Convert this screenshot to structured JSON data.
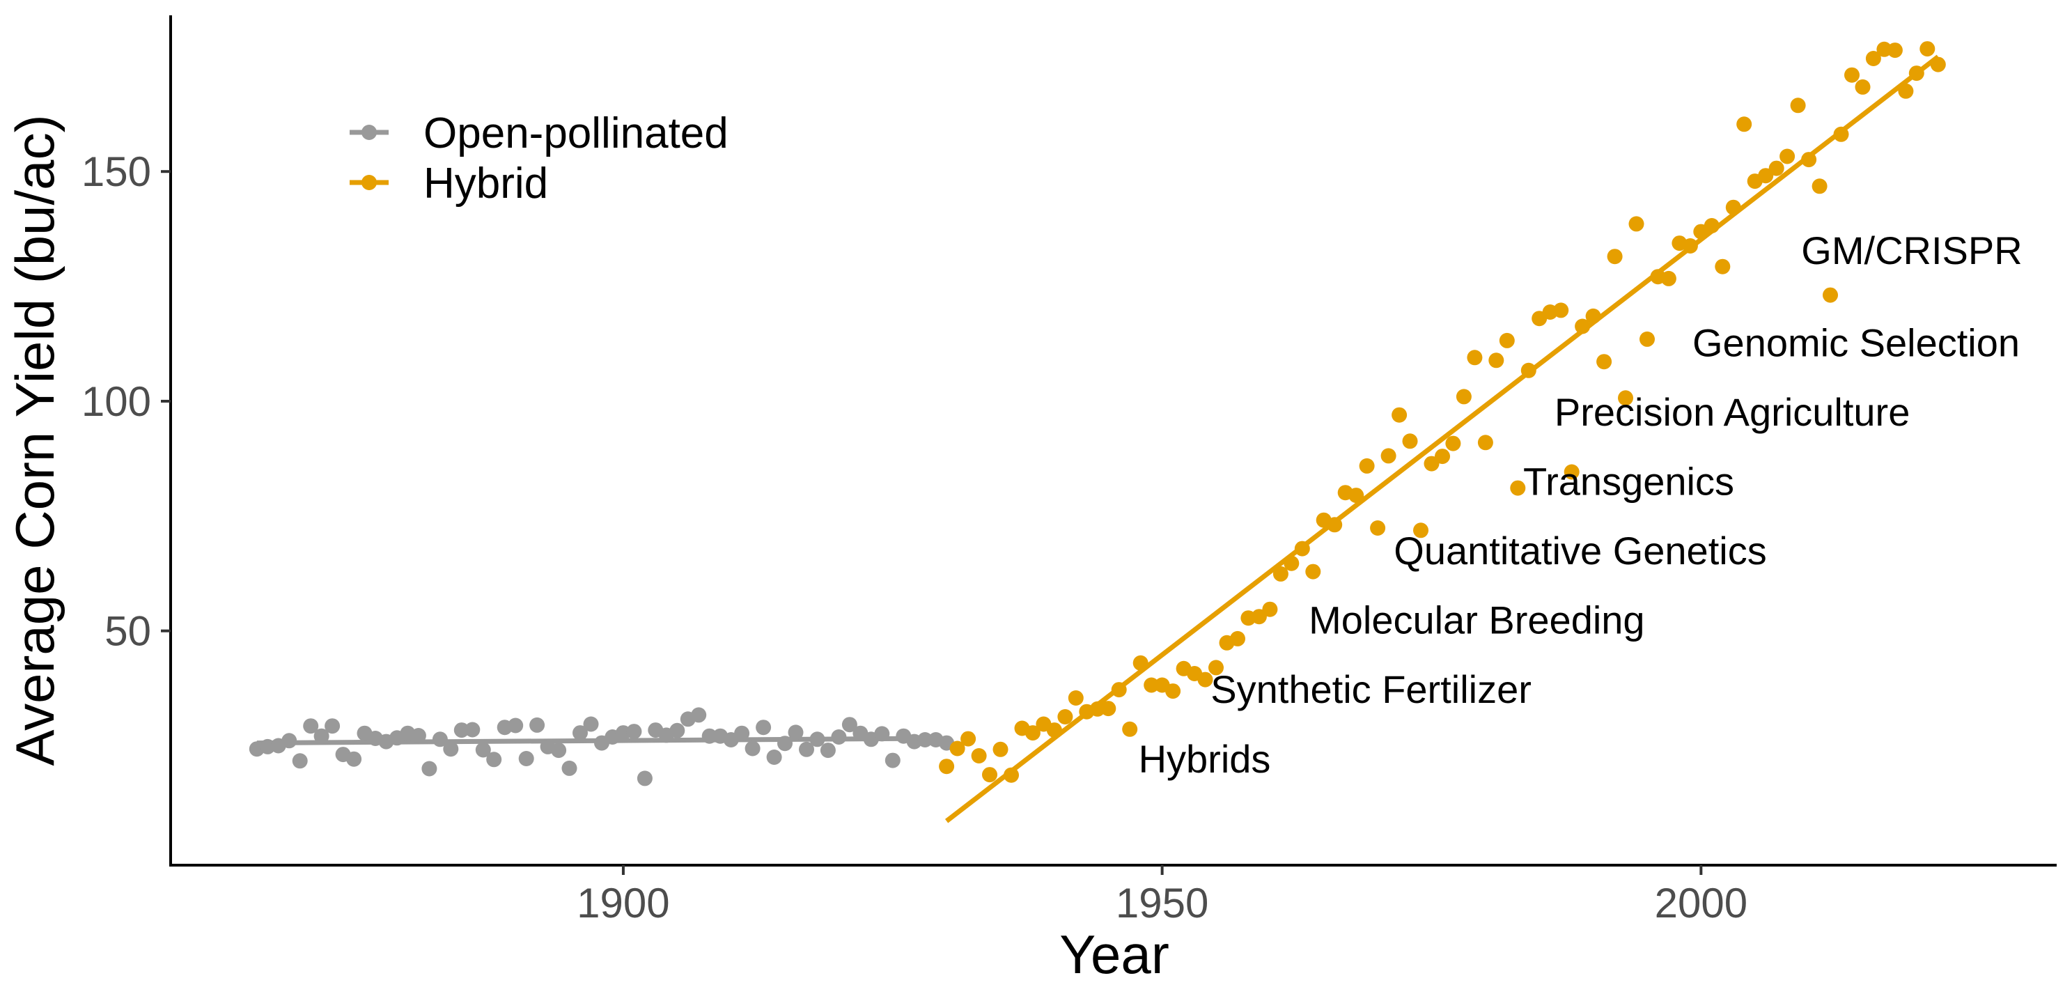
{
  "chart_data": {
    "type": "scatter",
    "xlabel": "Year",
    "ylabel": "Average Corn Yield (bu/ac)",
    "xlim": [
      1858,
      2033
    ],
    "ylim": [
      -1,
      184
    ],
    "x_ticks": [
      1900,
      1950,
      2000
    ],
    "y_ticks": [
      50,
      100,
      150
    ],
    "grid": false,
    "legend_position": "top-left",
    "colors": {
      "open": "#999999",
      "hybrid": "#E69F00"
    },
    "series": [
      {
        "name": "Open-pollinated",
        "color": "#999999",
        "points": [
          [
            1866,
            24.3
          ],
          [
            1867,
            24.8
          ],
          [
            1868,
            25.0
          ],
          [
            1869,
            26.1
          ],
          [
            1870,
            21.7
          ],
          [
            1871,
            29.3
          ],
          [
            1872,
            27.1
          ],
          [
            1873,
            29.3
          ],
          [
            1874,
            23.1
          ],
          [
            1875,
            22.1
          ],
          [
            1876,
            27.7
          ],
          [
            1877,
            26.6
          ],
          [
            1878,
            25.9
          ],
          [
            1879,
            26.7
          ],
          [
            1880,
            27.7
          ],
          [
            1881,
            27.2
          ],
          [
            1882,
            20.0
          ],
          [
            1883,
            26.4
          ],
          [
            1884,
            24.3
          ],
          [
            1885,
            28.4
          ],
          [
            1886,
            28.5
          ],
          [
            1887,
            24.1
          ],
          [
            1888,
            22.0
          ],
          [
            1889,
            29.0
          ],
          [
            1890,
            29.4
          ],
          [
            1891,
            22.2
          ],
          [
            1892,
            29.5
          ],
          [
            1893,
            24.8
          ],
          [
            1894,
            24.0
          ],
          [
            1895,
            20.1
          ],
          [
            1896,
            27.8
          ],
          [
            1897,
            29.7
          ],
          [
            1898,
            25.6
          ],
          [
            1899,
            26.9
          ],
          [
            1900,
            27.8
          ],
          [
            1901,
            28.1
          ],
          [
            1902,
            17.9
          ],
          [
            1903,
            28.4
          ],
          [
            1904,
            27.3
          ],
          [
            1905,
            28.3
          ],
          [
            1906,
            30.8
          ],
          [
            1907,
            31.7
          ],
          [
            1908,
            27.1
          ],
          [
            1909,
            27.1
          ],
          [
            1910,
            26.3
          ],
          [
            1911,
            27.7
          ],
          [
            1912,
            24.4
          ],
          [
            1913,
            29.0
          ],
          [
            1914,
            22.5
          ],
          [
            1915,
            25.5
          ],
          [
            1916,
            27.9
          ],
          [
            1917,
            24.2
          ],
          [
            1918,
            26.4
          ],
          [
            1919,
            24.0
          ],
          [
            1920,
            26.9
          ],
          [
            1921,
            29.6
          ],
          [
            1922,
            27.7
          ],
          [
            1923,
            26.4
          ],
          [
            1924,
            27.6
          ],
          [
            1925,
            21.8
          ],
          [
            1926,
            27.1
          ],
          [
            1927,
            25.9
          ],
          [
            1928,
            26.3
          ],
          [
            1929,
            26.3
          ],
          [
            1930,
            25.6
          ]
        ],
        "trend": [
          [
            1866,
            25.6
          ],
          [
            1929,
            26.6
          ]
        ]
      },
      {
        "name": "Hybrid",
        "color": "#E69F00",
        "points": [
          [
            1930,
            20.5
          ],
          [
            1931,
            24.4
          ],
          [
            1932,
            26.5
          ],
          [
            1933,
            22.8
          ],
          [
            1934,
            18.7
          ],
          [
            1935,
            24.2
          ],
          [
            1936,
            18.6
          ],
          [
            1937,
            28.8
          ],
          [
            1938,
            27.8
          ],
          [
            1939,
            29.7
          ],
          [
            1940,
            28.4
          ],
          [
            1941,
            31.3
          ],
          [
            1942,
            35.4
          ],
          [
            1943,
            32.4
          ],
          [
            1944,
            33.0
          ],
          [
            1945,
            33.1
          ],
          [
            1946,
            37.2
          ],
          [
            1947,
            28.6
          ],
          [
            1948,
            43.0
          ],
          [
            1949,
            38.2
          ],
          [
            1950,
            38.2
          ],
          [
            1951,
            36.9
          ],
          [
            1952,
            41.8
          ],
          [
            1953,
            40.7
          ],
          [
            1954,
            39.4
          ],
          [
            1955,
            42.0
          ],
          [
            1956,
            47.4
          ],
          [
            1957,
            48.3
          ],
          [
            1958,
            52.8
          ],
          [
            1959,
            53.1
          ],
          [
            1960,
            54.7
          ],
          [
            1961,
            62.4
          ],
          [
            1962,
            64.7
          ],
          [
            1963,
            67.9
          ],
          [
            1964,
            62.9
          ],
          [
            1965,
            74.1
          ],
          [
            1966,
            73.1
          ],
          [
            1967,
            80.1
          ],
          [
            1968,
            79.5
          ],
          [
            1969,
            85.9
          ],
          [
            1970,
            72.4
          ],
          [
            1971,
            88.1
          ],
          [
            1972,
            97.0
          ],
          [
            1973,
            91.3
          ],
          [
            1974,
            71.9
          ],
          [
            1975,
            86.4
          ],
          [
            1976,
            88.0
          ],
          [
            1977,
            90.8
          ],
          [
            1978,
            101.0
          ],
          [
            1979,
            109.5
          ],
          [
            1980,
            91.0
          ],
          [
            1981,
            108.9
          ],
          [
            1982,
            113.2
          ],
          [
            1983,
            81.1
          ],
          [
            1984,
            106.7
          ],
          [
            1985,
            118.0
          ],
          [
            1986,
            119.4
          ],
          [
            1987,
            119.8
          ],
          [
            1988,
            84.6
          ],
          [
            1989,
            116.3
          ],
          [
            1990,
            118.5
          ],
          [
            1991,
            108.6
          ],
          [
            1992,
            131.5
          ],
          [
            1993,
            100.7
          ],
          [
            1994,
            138.6
          ],
          [
            1995,
            113.5
          ],
          [
            1996,
            127.1
          ],
          [
            1997,
            126.7
          ],
          [
            1998,
            134.4
          ],
          [
            1999,
            133.8
          ],
          [
            2000,
            136.9
          ],
          [
            2001,
            138.2
          ],
          [
            2002,
            129.3
          ],
          [
            2003,
            142.2
          ],
          [
            2004,
            160.3
          ],
          [
            2005,
            147.9
          ],
          [
            2006,
            149.1
          ],
          [
            2007,
            150.7
          ],
          [
            2008,
            153.3
          ],
          [
            2009,
            164.4
          ],
          [
            2010,
            152.6
          ],
          [
            2011,
            146.8
          ],
          [
            2012,
            123.1
          ],
          [
            2013,
            158.1
          ],
          [
            2014,
            171.0
          ],
          [
            2015,
            168.4
          ],
          [
            2016,
            174.6
          ],
          [
            2017,
            176.6
          ],
          [
            2018,
            176.4
          ],
          [
            2019,
            167.5
          ],
          [
            2020,
            171.4
          ],
          [
            2021,
            176.7
          ],
          [
            2022,
            173.3
          ]
        ],
        "trend": [
          [
            1930,
            8.6
          ],
          [
            2022,
            175.0
          ]
        ]
      }
    ],
    "annotations": [
      {
        "text": "Hybrids",
        "x": 1947.8,
        "y": 19.2
      },
      {
        "text": "Synthetic Fertilizer",
        "x": 1954.5,
        "y": 34.3
      },
      {
        "text": "Molecular Breeding",
        "x": 1963.6,
        "y": 49.4
      },
      {
        "text": "Quantitative Genetics",
        "x": 1971.5,
        "y": 64.5
      },
      {
        "text": "Transgenics",
        "x": 1983.5,
        "y": 79.6
      },
      {
        "text": "Precision Agriculture",
        "x": 1986.4,
        "y": 94.7
      },
      {
        "text": "Genomic Selection",
        "x": 1999.2,
        "y": 109.8
      },
      {
        "text": "GM/CRISPR",
        "x": 2009.3,
        "y": 129.9
      }
    ]
  }
}
